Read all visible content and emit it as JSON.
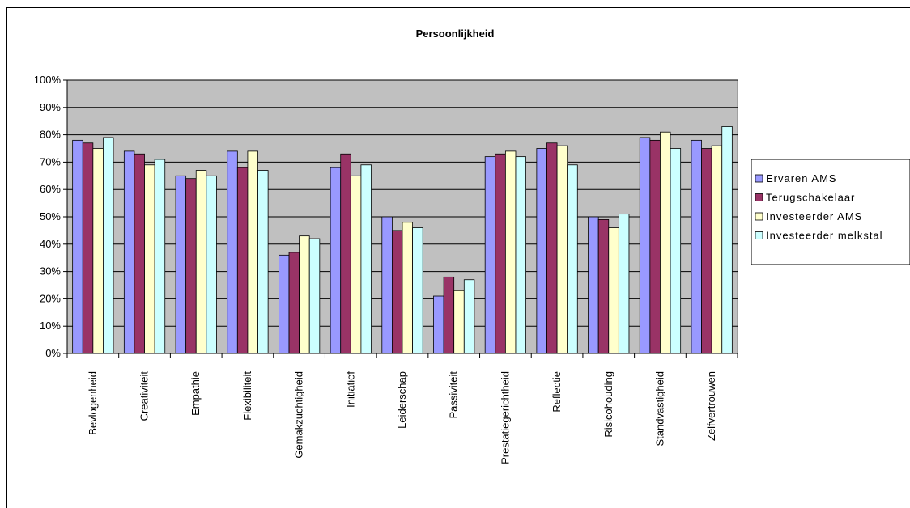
{
  "chart_data": {
    "type": "bar",
    "title": "Persoonlijkheid",
    "xlabel": "",
    "ylabel": "",
    "ylim": [
      0,
      100
    ],
    "y_ticks": [
      "0%",
      "10%",
      "20%",
      "30%",
      "40%",
      "50%",
      "60%",
      "70%",
      "80%",
      "90%",
      "100%"
    ],
    "grid": true,
    "legend_position": "right",
    "plot_background": "#c0c0c0",
    "categories": [
      "Bevlogenheid",
      "Creativiteit",
      "Empathie",
      "Flexibiliteit",
      "Gemakzuchtigheid",
      "Initiatief",
      "Leiderschap",
      "Passiviteit",
      "Prestatiegerichtheid",
      "Reflectie",
      "Risicohouding",
      "Standvastigheid",
      "Zelfvertrouwen"
    ],
    "series": [
      {
        "name": "Ervaren AMS",
        "color": "#9999ff",
        "values": [
          78,
          74,
          65,
          74,
          36,
          68,
          50,
          21,
          72,
          75,
          50,
          79,
          78
        ]
      },
      {
        "name": "Terugschakelaar",
        "color": "#993366",
        "values": [
          77,
          73,
          64,
          68,
          37,
          73,
          45,
          28,
          73,
          77,
          49,
          78,
          75
        ]
      },
      {
        "name": "Investeerder AMS",
        "color": "#ffffcc",
        "values": [
          75,
          69,
          67,
          74,
          43,
          65,
          48,
          23,
          74,
          76,
          46,
          81,
          76
        ]
      },
      {
        "name": "Investeerder melkstal",
        "color": "#ccffff",
        "values": [
          79,
          71,
          65,
          67,
          42,
          69,
          46,
          27,
          72,
          69,
          51,
          75,
          83
        ]
      }
    ]
  }
}
